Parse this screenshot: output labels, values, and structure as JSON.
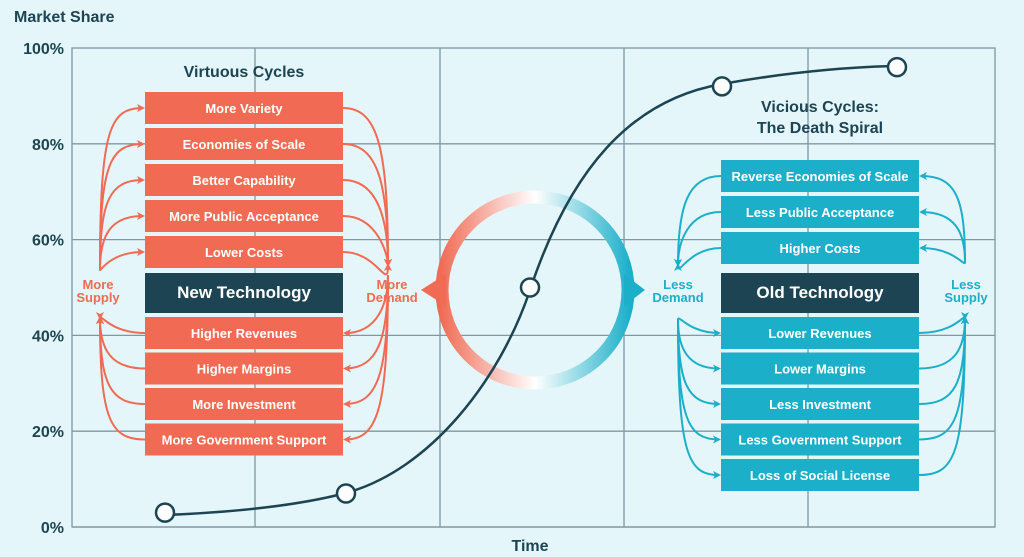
{
  "y_axis_title": "Market Share",
  "x_axis_title": "Time",
  "y_ticks": [
    "0%",
    "20%",
    "40%",
    "60%",
    "80%",
    "100%"
  ],
  "colors": {
    "virtuous": "#f06a54",
    "vicious": "#1bafc9",
    "core": "#1d4452",
    "background": "#e4f6f9"
  },
  "virtuous": {
    "title": "Virtuous Cycles",
    "core": "New Technology",
    "left_label": [
      "More",
      "Supply"
    ],
    "right_label": [
      "More",
      "Demand"
    ],
    "top_items": [
      "More Variety",
      "Economies of Scale",
      "Better Capability",
      "More Public Acceptance",
      "Lower Costs"
    ],
    "bottom_items": [
      "Higher Revenues",
      "Higher Margins",
      "More Investment",
      "More Government Support"
    ]
  },
  "vicious": {
    "title": [
      "Vicious Cycles:",
      "The Death Spiral"
    ],
    "core": "Old Technology",
    "left_label": [
      "Less",
      "Demand"
    ],
    "right_label": [
      "Less",
      "Supply"
    ],
    "top_items": [
      "Reverse Economies of Scale",
      "Less Public Acceptance",
      "Higher Costs"
    ],
    "bottom_items": [
      "Lower Revenues",
      "Lower Margins",
      "Less Investment",
      "Less Government Support",
      "Loss of Social License"
    ]
  },
  "s_curve_points_percent": [
    3,
    7,
    50,
    92,
    96
  ]
}
